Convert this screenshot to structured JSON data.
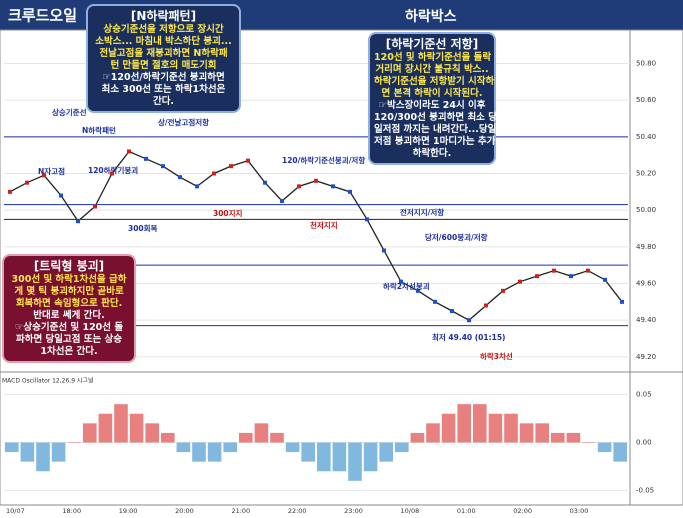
{
  "header": {
    "title_left": "크루드오일",
    "title_right": "하락박스"
  },
  "annotations": [
    {
      "title": "[N하락패턴]",
      "lines": [
        "상승기준선을 저항으로 장시간",
        "소박스... 마침내 박스하단 붕괴...",
        "전날고점을 재붕괴하면 N하락패",
        "턴 만들면 절호의 매도기회",
        "☞120선/하락기준선 붕괴하면",
        "최소 300선 또는 하락1차선은",
        "간다."
      ]
    },
    {
      "title": "[하락기준선 저항]",
      "lines": [
        "120선 및 하락기준선을 돌락",
        "거리며 장시간 불규칙 박스..",
        "하락기준선을 저항받기 시작하",
        "면 본격 하락이 시작된다.",
        "☞박스장이라도 24시 이후",
        "120/300선 붕괴하면 최소 당",
        "일저점 까지는 내려간다...당일",
        "저점 붕괴하면 1마디가는 추가",
        "하락한다."
      ]
    },
    {
      "title": "[트릭형 붕괴]",
      "lines": [
        "300선 및 하락1차선을 급하",
        "게 몇 틱 붕괴하지만 곧바로",
        "회복하면 속임형으로 판단.",
        "반대로 쎄게 간다.",
        "☞상승기준선 및 120선 돌",
        "파하면 당일고점 또는 상승",
        "1차선은 간다."
      ]
    }
  ],
  "chart_labels": [
    "상승기준선",
    "N하락패턴",
    "상/전날고점저항",
    "120/하락기준선붕괴/저항",
    "N자고점",
    "120하락기붕괴",
    "300지지",
    "300회복",
    "천저지지",
    "전저지지/저항",
    "당저/600붕괴/저항",
    "하락2차선붕괴",
    "최저 49.40 (01:15)",
    "하락3차선",
    "MACD Oscillator 12,26,9 시그널"
  ],
  "chart_data": {
    "type": "line",
    "color": "#222222",
    "values": [
      50.1,
      50.15,
      50.19,
      50.08,
      49.94,
      50.02,
      50.2,
      50.32,
      50.28,
      50.24,
      50.18,
      50.13,
      50.2,
      50.24,
      50.27,
      50.15,
      50.05,
      50.13,
      50.16,
      50.13,
      50.1,
      49.95,
      49.78,
      49.61,
      49.56,
      49.5,
      49.45,
      49.4,
      49.48,
      49.56,
      49.61,
      49.64,
      49.67,
      49.64,
      49.67,
      49.62,
      49.5
    ],
    "levels": [
      50.4,
      50.03,
      49.95,
      49.7,
      49.37
    ],
    "ylim": [
      49.15,
      50.95
    ],
    "yticks": [
      {
        "value": 49.2,
        "label": "49.20"
      },
      {
        "value": 49.4,
        "label": "49.40"
      },
      {
        "value": 49.6,
        "label": "49.60"
      },
      {
        "value": 49.8,
        "label": "49.80"
      },
      {
        "value": 50,
        "label": "50.00"
      },
      {
        "value": 50.2,
        "label": "50.20"
      },
      {
        "value": 50.4,
        "label": "50.40"
      },
      {
        "value": 50.6,
        "label": "50.60"
      },
      {
        "value": 50.8,
        "label": "50.80"
      }
    ],
    "time_labels": [
      "10/07",
      "18:00",
      "19:00",
      "20:00",
      "21:00",
      "22:00",
      "23:00",
      "10/08",
      "01:00",
      "02:00",
      "03:00"
    ],
    "macd": {
      "values": [
        -0.01,
        -0.02,
        -0.03,
        -0.02,
        0.0,
        0.02,
        0.03,
        0.04,
        0.03,
        0.02,
        0.01,
        -0.01,
        -0.02,
        -0.02,
        -0.01,
        0.01,
        0.02,
        0.01,
        -0.01,
        -0.02,
        -0.03,
        -0.03,
        -0.04,
        -0.03,
        -0.02,
        -0.01,
        0.01,
        0.02,
        0.03,
        0.04,
        0.04,
        0.03,
        0.03,
        0.02,
        0.02,
        0.01,
        0.01,
        0.0,
        -0.01,
        -0.02
      ],
      "ylim": [
        -0.06,
        0.06
      ],
      "yticks": [
        {
          "value": -0.05,
          "label": "-0.05"
        },
        {
          "value": 0,
          "label": "0.00"
        },
        {
          "value": 0.05,
          "label": "0.05"
        }
      ],
      "pos_color": "#e88080",
      "neg_color": "#80b8e0"
    }
  }
}
